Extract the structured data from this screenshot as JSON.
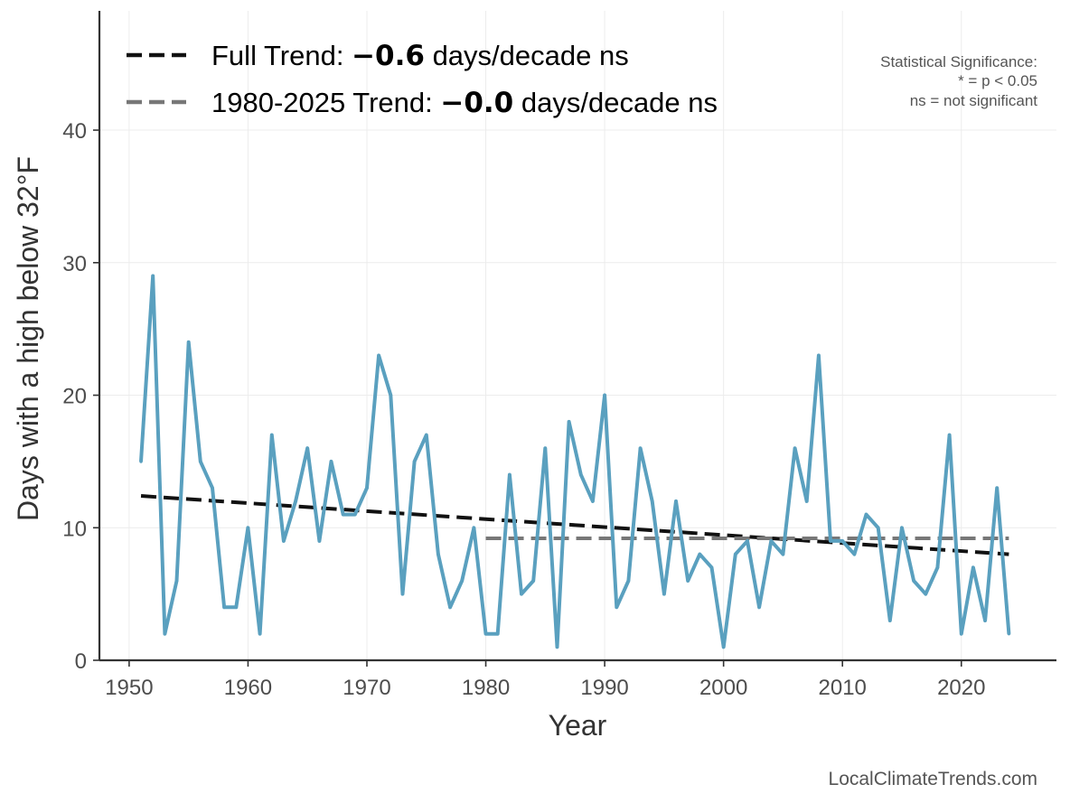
{
  "chart_data": {
    "type": "line",
    "xlabel": "Year",
    "ylabel": "Days with a high below 32°F",
    "xlim": [
      1947.5,
      2028
    ],
    "ylim": [
      0,
      49
    ],
    "x_ticks": [
      1950,
      1960,
      1970,
      1980,
      1990,
      2000,
      2010,
      2020
    ],
    "y_ticks": [
      0,
      10,
      20,
      30,
      40
    ],
    "grid": true,
    "legend_position": "top-left",
    "series": [
      {
        "color": "#5aa0bf",
        "x": [
          1951,
          1952,
          1953,
          1954,
          1955,
          1956,
          1957,
          1958,
          1959,
          1960,
          1961,
          1962,
          1963,
          1964,
          1965,
          1966,
          1967,
          1968,
          1969,
          1970,
          1971,
          1972,
          1973,
          1974,
          1975,
          1976,
          1977,
          1978,
          1979,
          1980,
          1981,
          1982,
          1983,
          1984,
          1985,
          1986,
          1987,
          1988,
          1989,
          1990,
          1991,
          1992,
          1993,
          1994,
          1995,
          1996,
          1997,
          1998,
          1999,
          2000,
          2001,
          2002,
          2003,
          2004,
          2005,
          2006,
          2007,
          2008,
          2009,
          2010,
          2011,
          2012,
          2013,
          2014,
          2015,
          2016,
          2017,
          2018,
          2019,
          2020,
          2021,
          2022,
          2023,
          2024
        ],
        "values": [
          15,
          29,
          2,
          6,
          24,
          15,
          13,
          4,
          4,
          10,
          2,
          17,
          9,
          12,
          16,
          9,
          15,
          11,
          11,
          13,
          23,
          20,
          5,
          15,
          17,
          8,
          4,
          6,
          10,
          2,
          2,
          14,
          5,
          6,
          16,
          1,
          18,
          14,
          12,
          20,
          4,
          6,
          16,
          12,
          5,
          12,
          6,
          8,
          7,
          1,
          8,
          9,
          4,
          9,
          8,
          16,
          12,
          23,
          9,
          9,
          8,
          11,
          10,
          3,
          10,
          6,
          5,
          7,
          17,
          2,
          7,
          3,
          13,
          2
        ]
      }
    ],
    "trends": [
      {
        "label_prefix": "Full Trend: ",
        "label_value": "−0.6",
        "label_suffix": " days/decade ns",
        "color": "#111111",
        "x": [
          1951,
          2024
        ],
        "values": [
          12.4,
          8.0
        ]
      },
      {
        "label_prefix": "1980-2025 Trend: ",
        "label_value": "−0.0",
        "label_suffix": " days/decade ns",
        "color": "#777777",
        "x": [
          1980,
          2024
        ],
        "values": [
          9.2,
          9.2
        ]
      }
    ],
    "annotation": [
      "Statistical Significance:",
      "* = p < 0.05",
      "ns = not significant"
    ],
    "credit": "LocalClimateTrends.com"
  }
}
